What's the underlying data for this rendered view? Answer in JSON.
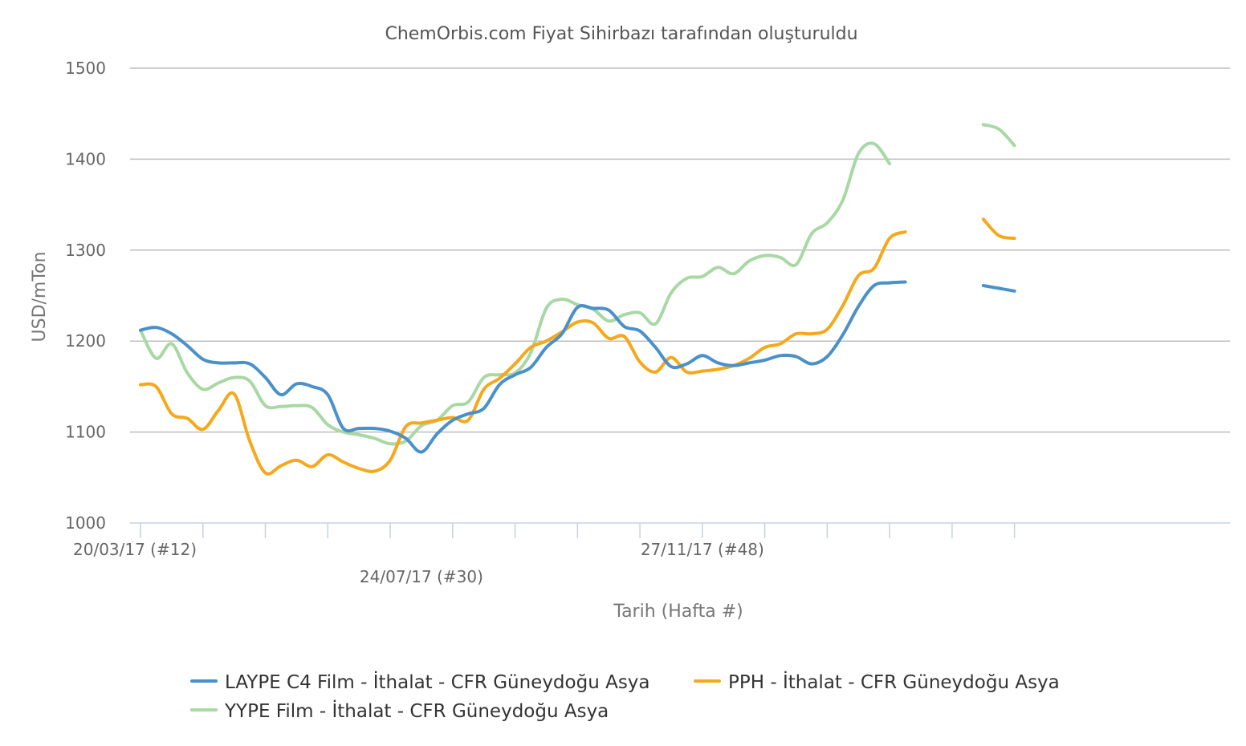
{
  "chart_data": {
    "type": "line",
    "title": "ChemOrbis.com Fiyat Sihirbazı tarafından oluşturuldu",
    "xlabel": "Tarih (Hafta #)",
    "ylabel": "USD/mTon",
    "ylim": [
      1000,
      1500
    ],
    "yticks": [
      "1000",
      "1100",
      "1200",
      "1300",
      "1400",
      "1500"
    ],
    "grid": true,
    "legend_position": "bottom",
    "x": [
      12,
      13,
      14,
      15,
      16,
      17,
      18,
      19,
      20,
      21,
      22,
      23,
      24,
      25,
      26,
      27,
      28,
      29,
      30,
      31,
      32,
      33,
      34,
      35,
      36,
      37,
      38,
      39,
      40,
      41,
      42,
      43,
      44,
      45,
      46,
      47,
      48,
      49,
      50,
      51,
      52,
      53,
      54,
      55,
      56,
      57,
      58,
      59,
      60,
      61,
      62,
      63,
      64,
      65,
      66,
      67,
      68
    ],
    "x_tick_labels": [
      {
        "week": 12,
        "label": "20/03/17 (#12)"
      },
      {
        "week": 30,
        "label": "24/07/17 (#30)"
      },
      {
        "week": 48,
        "label": "27/11/17 (#48)"
      }
    ],
    "series": [
      {
        "name": "LAYPE C4 Film - İthalat - CFR Güneydoğu Asya",
        "color": "#4a90c9",
        "values": [
          1212,
          1215,
          1208,
          1195,
          1180,
          1176,
          1176,
          1175,
          1160,
          1141,
          1153,
          1150,
          1141,
          1104,
          1104,
          1104,
          1101,
          1093,
          1078,
          1098,
          1113,
          1120,
          1126,
          1152,
          1163,
          1171,
          1193,
          1208,
          1237,
          1236,
          1234,
          1216,
          1211,
          1193,
          1172,
          1175,
          1184,
          1176,
          1173,
          1176,
          1179,
          1184,
          1183,
          1175,
          1183,
          1207,
          1238,
          1261,
          1264,
          1265,
          null,
          null,
          null,
          null,
          1261,
          1258,
          1255
        ]
      },
      {
        "name": "PPH - İthalat - CFR Güneydoğu Asya",
        "color": "#f5a81b",
        "values": [
          1152,
          1150,
          1120,
          1115,
          1103,
          1124,
          1142,
          1090,
          1055,
          1063,
          1069,
          1062,
          1075,
          1067,
          1060,
          1057,
          1069,
          1106,
          1110,
          1113,
          1116,
          1113,
          1147,
          1159,
          1175,
          1193,
          1200,
          1210,
          1221,
          1220,
          1203,
          1205,
          1177,
          1166,
          1182,
          1166,
          1167,
          1169,
          1173,
          1181,
          1193,
          1197,
          1208,
          1208,
          1213,
          1239,
          1272,
          1280,
          1313,
          1320,
          null,
          null,
          null,
          null,
          1334,
          1316,
          1313
        ]
      },
      {
        "name": "YYPE Film - İthalat - CFR Güneydoğu Asya",
        "color": "#a8d8a3",
        "values": [
          1212,
          1181,
          1197,
          1165,
          1147,
          1154,
          1160,
          1156,
          1129,
          1128,
          1129,
          1127,
          1108,
          1100,
          1097,
          1093,
          1087,
          1090,
          1107,
          1113,
          1129,
          1133,
          1160,
          1163,
          1165,
          1187,
          1236,
          1246,
          1240,
          1235,
          1222,
          1229,
          1231,
          1219,
          1253,
          1269,
          1271,
          1281,
          1274,
          1288,
          1294,
          1292,
          1284,
          1318,
          1330,
          1355,
          1406,
          1417,
          1395,
          null,
          null,
          null,
          null,
          null,
          1438,
          1433,
          1415
        ]
      }
    ]
  }
}
